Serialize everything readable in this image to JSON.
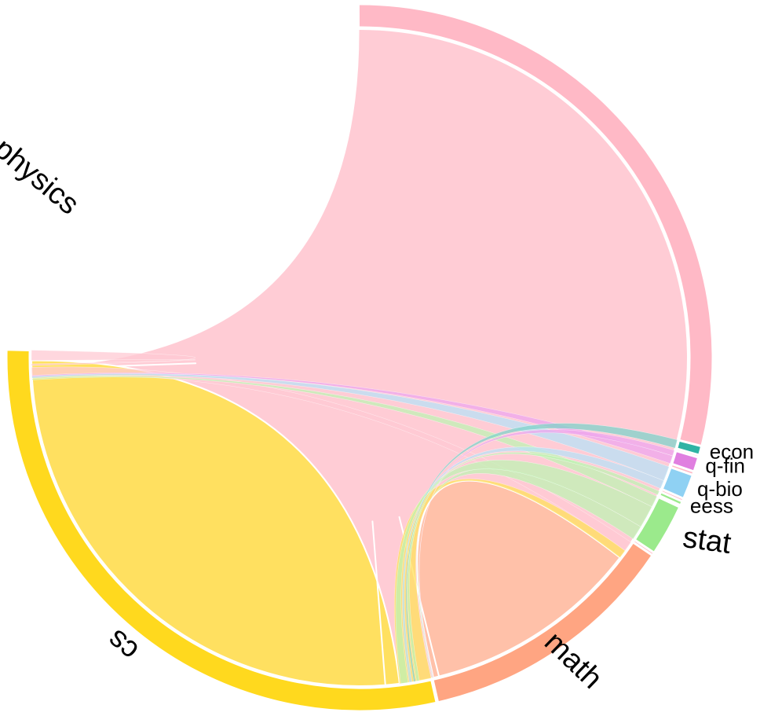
{
  "chart_data": {
    "type": "chord",
    "groups": [
      {
        "id": "physics",
        "label": "physics",
        "color": "#FFB9C6",
        "ribbon_color": "#FFC9D3",
        "label_size": "large"
      },
      {
        "id": "cs",
        "label": "cs",
        "color": "#FFD91E",
        "ribbon_color": "#FFE05A",
        "label_size": "large"
      },
      {
        "id": "math",
        "label": "math",
        "color": "#FFA582",
        "ribbon_color": "#FFC0A6",
        "label_size": "large"
      },
      {
        "id": "stat",
        "label": "stat",
        "color": "#9BEA8C",
        "ribbon_color": "#BFF3B3",
        "label_size": "large"
      },
      {
        "id": "eess",
        "label": "eess",
        "color": "#9BEA8C",
        "ribbon_color": "#BFF3B3",
        "label_size": "small"
      },
      {
        "id": "q-bio",
        "label": "q-bio",
        "color": "#8FD1F3",
        "ribbon_color": "#B8E2F6",
        "label_size": "small"
      },
      {
        "id": "q-fin",
        "label": "q-fin",
        "color": "#E07FE0",
        "ribbon_color": "#EDA7ED",
        "label_size": "small"
      },
      {
        "id": "econ",
        "label": "econ",
        "color": "#2FB3A4",
        "ribbon_color": "#7FD3C9",
        "label_size": "small"
      }
    ],
    "group_angles_deg": {
      "physics": [
        -90.2,
        178.4
      ],
      "cs": [
        -178.7,
        -282.6
      ],
      "math": [
        -282.8,
        -326.0
      ],
      "stat": [
        -326.5,
        -335.0
      ],
      "eess": [
        -335.3,
        -336.0
      ],
      "q-bio": [
        -336.5,
        -340.6
      ],
      "q-fin": [
        -341.2,
        -343.6
      ],
      "econ": [
        -344.0,
        -345.5
      ]
    },
    "ribbons": [
      {
        "source": "physics",
        "target": "physics",
        "s": [
          -90.2,
          178.0
        ],
        "t": [
          178.0,
          178.4
        ]
      },
      {
        "source": "cs",
        "target": "cs",
        "s": [
          -180.5,
          -274.5
        ],
        "t": [
          -274.5,
          -277.0
        ]
      },
      {
        "source": "math",
        "target": "math",
        "s": [
          -284.0,
          -322.5
        ],
        "t": [
          -283.0,
          -284.0
        ]
      },
      {
        "source": "physics",
        "target": "math",
        "s": [
          178.3,
          176.5
        ],
        "t": [
          -324.0,
          -325.8
        ]
      },
      {
        "source": "physics",
        "target": "cs",
        "s": [
          178.9,
          178.6
        ],
        "t": [
          -178.7,
          -180.5
        ]
      },
      {
        "source": "cs",
        "target": "math",
        "s": [
          -277.0,
          -282.6
        ],
        "t": [
          -322.5,
          -324.0
        ]
      },
      {
        "source": "stat",
        "target": "math",
        "s": [
          -326.5,
          -329.0
        ],
        "t": [
          -282.8,
          -283.0
        ]
      },
      {
        "source": "stat",
        "target": "cs",
        "s": [
          -329.0,
          -333.0
        ],
        "t": [
          -277.2,
          -278.5
        ]
      },
      {
        "source": "stat",
        "target": "physics",
        "s": [
          -333.0,
          -335.0
        ],
        "t": [
          176.3,
          176.1
        ]
      },
      {
        "source": "q-bio",
        "target": "cs",
        "s": [
          -336.5,
          -338.0
        ],
        "t": [
          -278.7,
          -279.2
        ]
      },
      {
        "source": "q-bio",
        "target": "physics",
        "s": [
          -338.0,
          -340.6
        ],
        "t": [
          176.8,
          176.4
        ]
      },
      {
        "source": "q-fin",
        "target": "physics",
        "s": [
          -341.2,
          -342.6
        ],
        "t": [
          176.9,
          176.7
        ]
      },
      {
        "source": "q-fin",
        "target": "math",
        "s": [
          -342.6,
          -343.6
        ],
        "t": [
          -282.9,
          -283.0
        ]
      },
      {
        "source": "econ",
        "target": "cs",
        "s": [
          -344.0,
          -345.5
        ],
        "t": [
          -279.5,
          -279.8
        ]
      },
      {
        "source": "eess",
        "target": "cs",
        "s": [
          -335.3,
          -336.0
        ],
        "t": [
          -280.0,
          -280.5
        ]
      }
    ]
  }
}
